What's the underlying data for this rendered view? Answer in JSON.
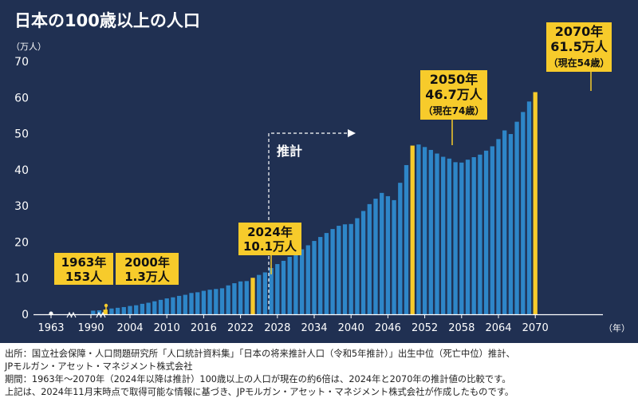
{
  "chart_data": {
    "type": "bar",
    "title": "日本の100歳以上の人口",
    "ylabel": "（万人）",
    "xlabel": "（年）",
    "ylim": [
      0,
      70
    ],
    "y_ticks": [
      0,
      10,
      20,
      30,
      40,
      50,
      60,
      70
    ],
    "x_tick_labels": [
      "1963",
      "1990",
      "2004",
      "2010",
      "2016",
      "2022",
      "2028",
      "2034",
      "2040",
      "2046",
      "2052",
      "2058",
      "2064",
      "2070"
    ],
    "forecast_label": "推計",
    "x": [
      1963,
      1998,
      1999,
      2000,
      2001,
      2002,
      2003,
      2004,
      2005,
      2006,
      2007,
      2008,
      2009,
      2010,
      2011,
      2012,
      2013,
      2014,
      2015,
      2016,
      2017,
      2018,
      2019,
      2020,
      2021,
      2022,
      2023,
      2024,
      2025,
      2026,
      2027,
      2028,
      2029,
      2030,
      2031,
      2032,
      2033,
      2034,
      2035,
      2036,
      2037,
      2038,
      2039,
      2040,
      2041,
      2042,
      2043,
      2044,
      2045,
      2046,
      2047,
      2048,
      2049,
      2050,
      2051,
      2052,
      2053,
      2054,
      2055,
      2056,
      2057,
      2058,
      2059,
      2060,
      2061,
      2062,
      2063,
      2064,
      2065,
      2066,
      2067,
      2068,
      2069,
      2070
    ],
    "values": [
      0.0153,
      1.0,
      1.1,
      1.3,
      1.6,
      1.8,
      2.0,
      2.3,
      2.5,
      2.9,
      3.2,
      3.6,
      4.0,
      4.4,
      4.7,
      5.1,
      5.4,
      5.9,
      6.1,
      6.5,
      6.8,
      7.0,
      7.2,
      8.0,
      8.6,
      9.1,
      9.2,
      10.1,
      10.9,
      11.6,
      12.8,
      13.9,
      14.8,
      15.9,
      16.9,
      18.0,
      19.1,
      20.3,
      21.4,
      22.5,
      23.6,
      24.5,
      24.9,
      25.0,
      26.6,
      28.6,
      30.5,
      32.0,
      33.6,
      32.7,
      31.6,
      36.4,
      41.3,
      46.7,
      47.0,
      46.3,
      45.5,
      44.5,
      43.6,
      43.1,
      42.1,
      42.0,
      42.8,
      43.5,
      44.2,
      45.3,
      46.5,
      48.5,
      50.9,
      49.9,
      53.3,
      56.0,
      58.9,
      61.5
    ],
    "highlight_years": [
      1963,
      2000,
      2024,
      2050,
      2070
    ],
    "annotations": [
      {
        "year": 1963,
        "lines": [
          "1963年",
          "153人"
        ]
      },
      {
        "year": 2000,
        "lines": [
          "2000年",
          "1.3万人"
        ]
      },
      {
        "year": 2024,
        "lines": [
          "2024年",
          "10.1万人"
        ]
      },
      {
        "year": 2050,
        "lines": [
          "2050年",
          "46.7万人",
          "（現在74歳）"
        ]
      },
      {
        "year": 2070,
        "lines": [
          "2070年",
          "61.5万人",
          "（現在54歳）"
        ]
      }
    ],
    "colors": {
      "background": "#203052",
      "bar": "#2e86c8",
      "highlight": "#f7cb2b",
      "text": "#ffffff",
      "label_text": "#111111"
    }
  },
  "notes": [
    "出所：国立社会保障・人口問題研究所「人口統計資料集」「日本の将来推計人口（令和5年推計）」出生中位（死亡中位）推計、",
    "JPモルガン・アセット・マネジメント株式会社",
    "期間：1963年～2070年（2024年以降は推計）100歳以上の人口が現在の約6倍は、2024年と2070年の推計値の比較です。",
    "上記は、2024年11月末時点で取得可能な情報に基づき、JPモルガン・アセット・マネジメント株式会社が作成したものです。"
  ]
}
